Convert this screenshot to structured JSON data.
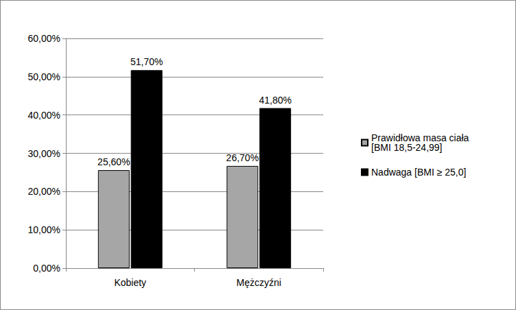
{
  "chart_data": {
    "type": "bar",
    "categories": [
      "Kobiety",
      "Mężczyźni"
    ],
    "series": [
      {
        "name": "Prawidłowa masa ciała [BMI 18,5-24,99]",
        "color": "#a6a6a6",
        "values": [
          25.6,
          26.7
        ],
        "value_labels": [
          "25,60%",
          "26,70%"
        ]
      },
      {
        "name": "Nadwaga [BMI ≥ 25,0]",
        "color": "#000000",
        "values": [
          51.7,
          41.8
        ],
        "value_labels": [
          "51,70%",
          "41,80%"
        ]
      }
    ],
    "ylim": [
      0,
      60
    ],
    "yticks": [
      {
        "value": 0,
        "label": "0,00%"
      },
      {
        "value": 10,
        "label": "10,00%"
      },
      {
        "value": 20,
        "label": "20,00%"
      },
      {
        "value": 30,
        "label": "30,00%"
      },
      {
        "value": 40,
        "label": "40,00%"
      },
      {
        "value": 50,
        "label": "50,00%"
      },
      {
        "value": 60,
        "label": "60,00%"
      }
    ],
    "grid": true,
    "legend": "right",
    "data_labels": true
  }
}
